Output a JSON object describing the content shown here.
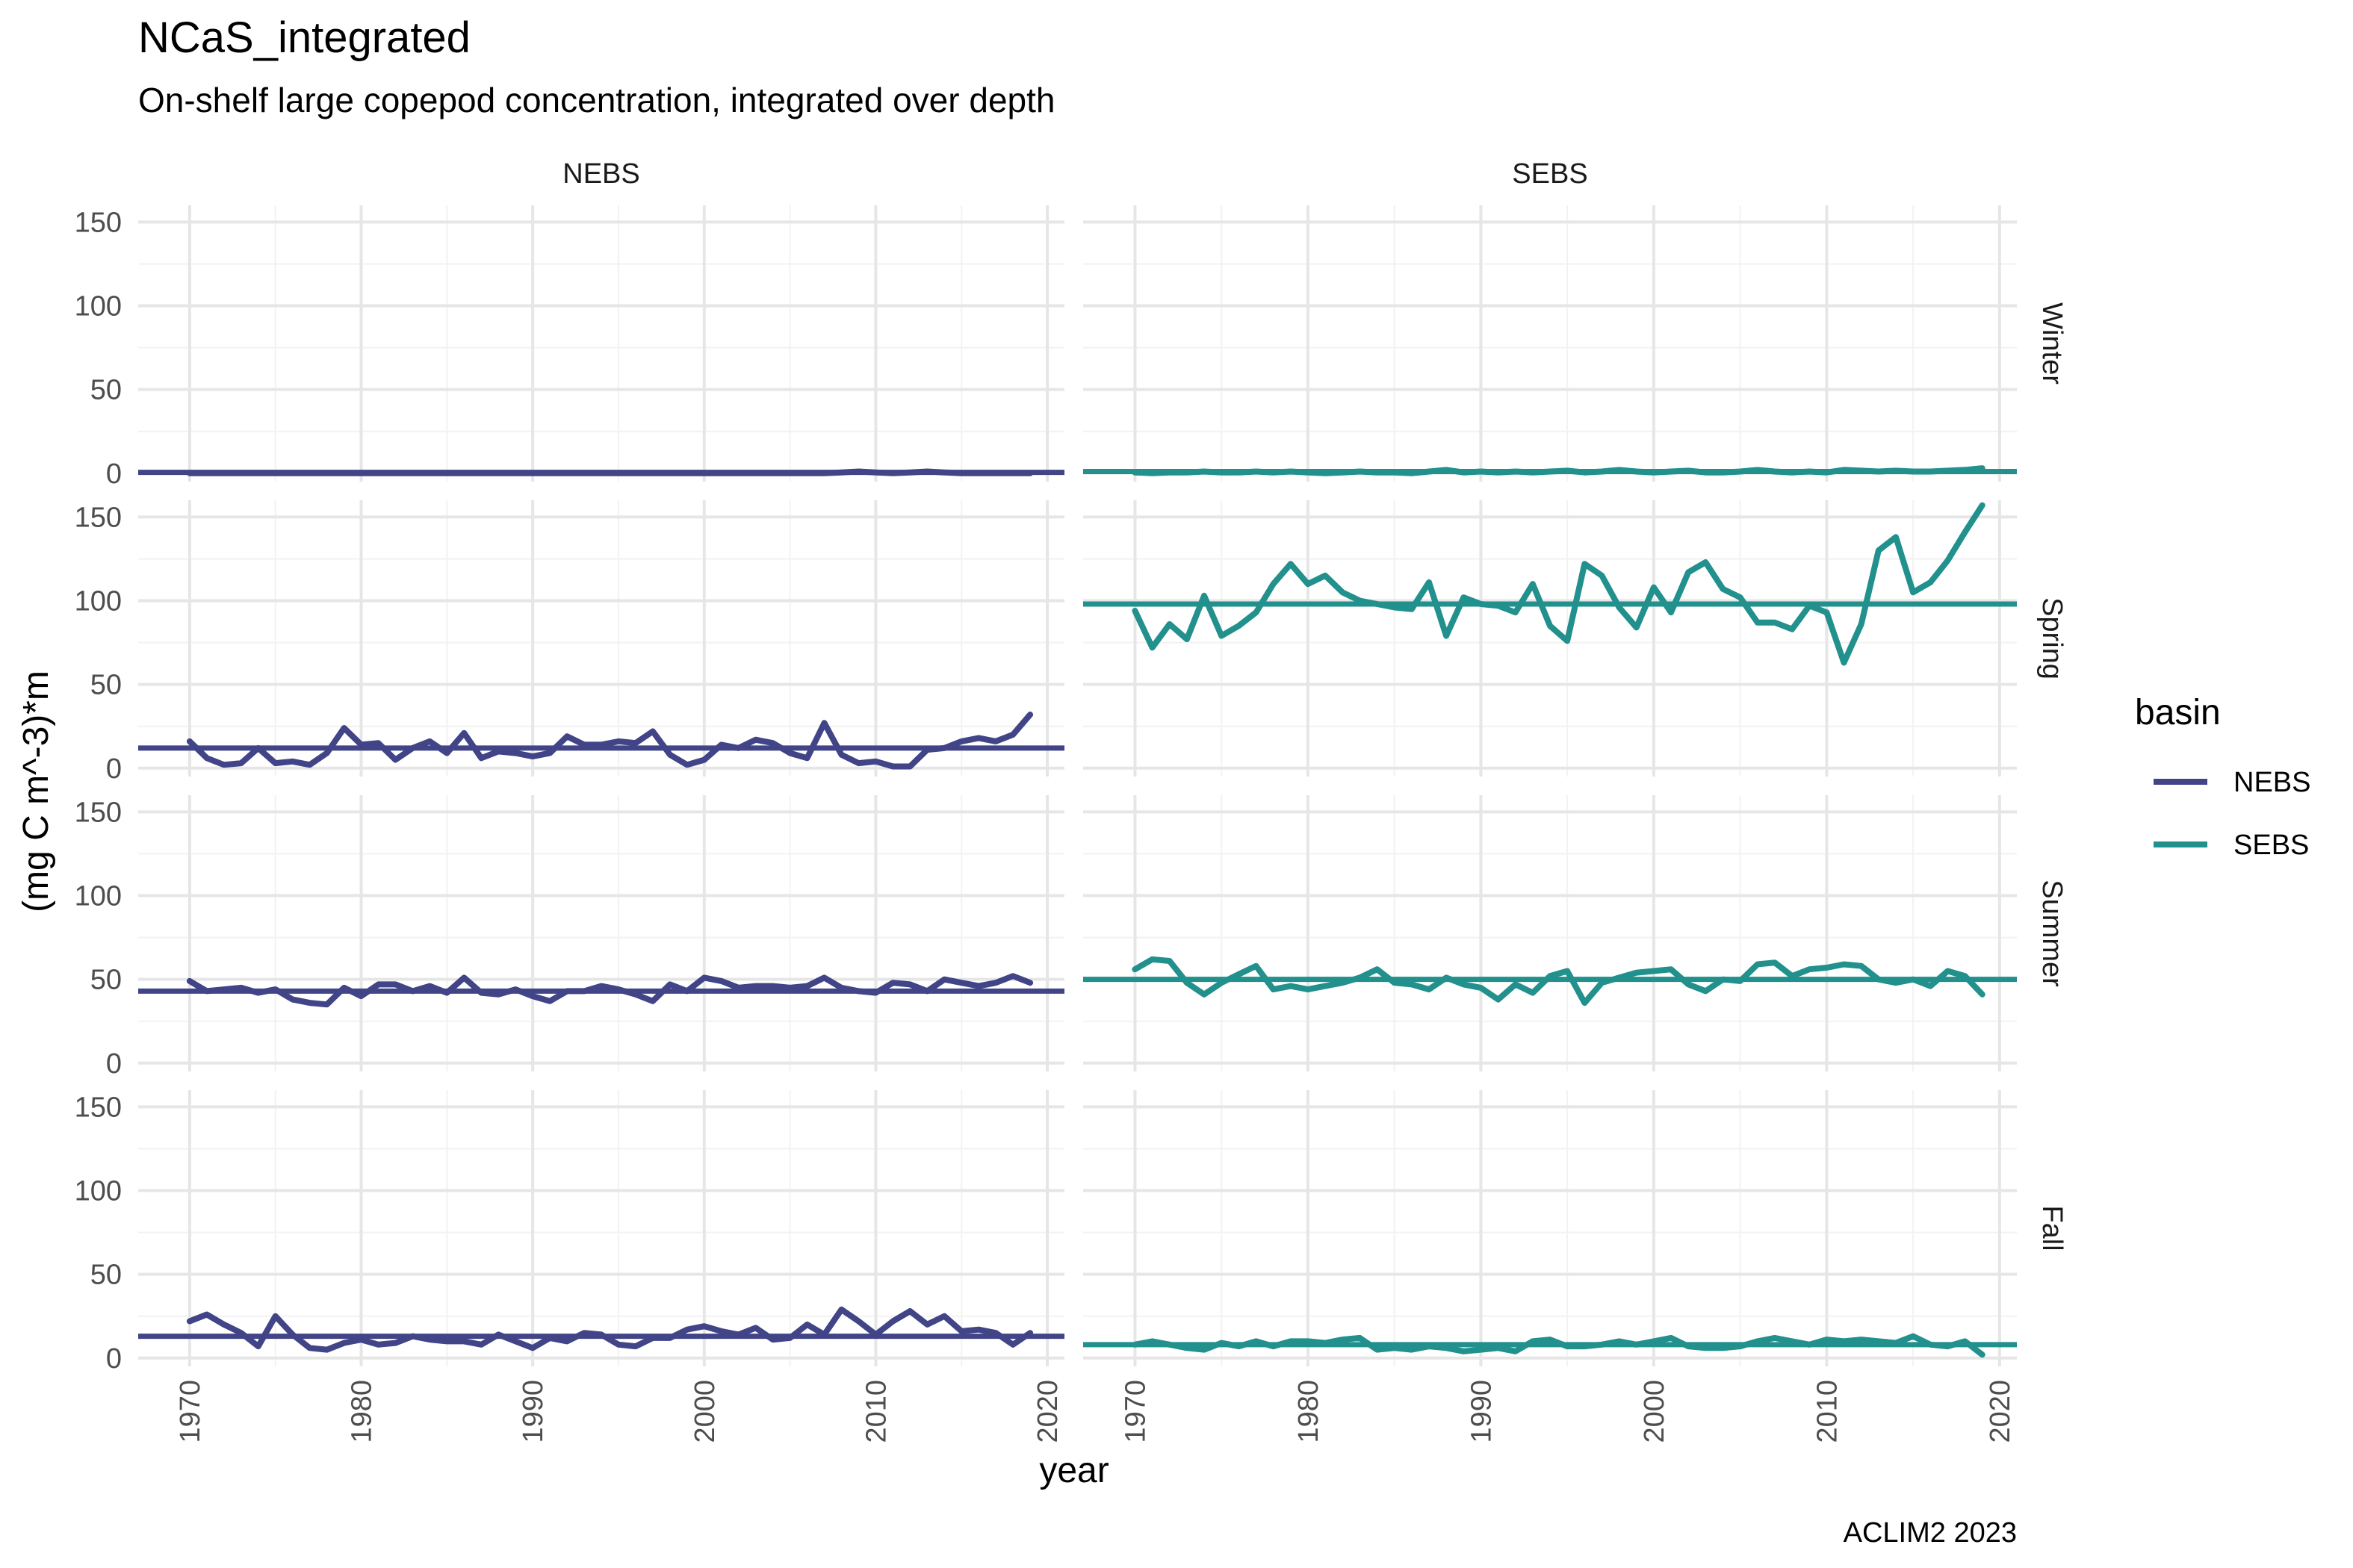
{
  "chart_data": {
    "type": "line",
    "title": "NCaS_integrated",
    "subtitle": "On-shelf large copepod concentration, integrated over depth",
    "xlabel": "year",
    "ylabel": "(mg C m^-3)*m",
    "caption": "ACLIM2 2023",
    "xlim": [
      1967,
      2021
    ],
    "ylim": [
      -5,
      160
    ],
    "x_ticks": [
      1970,
      1980,
      1990,
      2000,
      2010,
      2020
    ],
    "y_ticks": [
      0,
      50,
      100,
      150
    ],
    "grid": true,
    "legend": {
      "title": "basin",
      "position": "right"
    },
    "colors": {
      "NEBS": "#414487",
      "SEBS": "#22908C"
    },
    "columns": [
      "NEBS",
      "SEBS"
    ],
    "rows": [
      "Winter",
      "Spring",
      "Summer",
      "Fall"
    ],
    "x_start": 1970,
    "x_end": 2019,
    "panels": [
      {
        "season": "Winter",
        "basin": "NEBS",
        "mean": 0.5,
        "values": [
          0,
          0,
          0,
          0,
          0,
          0,
          0,
          0,
          0,
          0,
          0,
          0,
          0,
          0,
          0,
          0,
          0,
          0,
          0,
          0,
          0,
          0,
          0,
          0,
          0,
          0,
          0,
          0,
          0,
          0,
          0,
          0,
          0,
          0,
          0,
          0,
          0,
          0,
          0.5,
          1,
          0.5,
          0,
          0.5,
          1,
          0.5,
          0,
          0,
          0,
          0,
          0
        ]
      },
      {
        "season": "Winter",
        "basin": "SEBS",
        "mean": 1,
        "values": [
          0.5,
          0,
          0.5,
          0.5,
          1,
          0.5,
          0.5,
          1,
          0.5,
          1,
          0.5,
          0,
          0.5,
          1,
          0.5,
          0.5,
          0,
          1,
          2,
          0.5,
          1,
          0.5,
          1,
          0.5,
          1,
          1.5,
          0.5,
          1,
          2,
          1,
          0.5,
          1,
          1.5,
          0.5,
          0.5,
          1,
          2,
          1,
          0.5,
          1,
          0.5,
          2,
          1.5,
          1,
          1.5,
          1,
          1,
          1.5,
          2,
          3
        ]
      },
      {
        "season": "Spring",
        "basin": "NEBS",
        "mean": 12,
        "values": [
          16,
          6,
          2,
          3,
          12,
          3,
          4,
          2,
          9,
          24,
          14,
          15,
          5,
          12,
          16,
          9,
          21,
          6,
          10,
          9,
          7,
          9,
          19,
          14,
          14,
          16,
          15,
          22,
          8,
          2,
          5,
          14,
          12,
          17,
          15,
          9,
          6,
          27,
          8,
          3,
          4,
          1,
          1,
          11,
          12,
          16,
          18,
          16,
          20,
          32
        ]
      },
      {
        "season": "Spring",
        "basin": "SEBS",
        "mean": 98,
        "values": [
          94,
          72,
          86,
          77,
          103,
          79,
          85,
          93,
          110,
          122,
          110,
          115,
          105,
          100,
          98,
          96,
          95,
          111,
          79,
          102,
          98,
          97,
          93,
          110,
          85,
          76,
          122,
          115,
          96,
          84,
          108,
          93,
          117,
          123,
          107,
          102,
          87,
          87,
          83,
          97,
          93,
          63,
          86,
          130,
          138,
          105,
          111,
          124,
          141,
          157
        ]
      },
      {
        "season": "Summer",
        "basin": "NEBS",
        "mean": 43,
        "values": [
          49,
          43,
          44,
          45,
          42,
          44,
          38,
          36,
          35,
          45,
          40,
          47,
          47,
          43,
          46,
          42,
          51,
          42,
          41,
          44,
          40,
          37,
          43,
          43,
          46,
          44,
          41,
          37,
          47,
          43,
          51,
          49,
          45,
          46,
          46,
          45,
          46,
          51,
          45,
          43,
          42,
          48,
          47,
          43,
          50,
          48,
          46,
          48,
          52,
          48
        ]
      },
      {
        "season": "Summer",
        "basin": "SEBS",
        "mean": 50,
        "values": [
          56,
          62,
          61,
          48,
          41,
          48,
          53,
          58,
          44,
          46,
          44,
          46,
          48,
          51,
          56,
          48,
          47,
          44,
          51,
          47,
          45,
          38,
          47,
          42,
          52,
          55,
          36,
          48,
          51,
          54,
          55,
          56,
          47,
          43,
          50,
          49,
          59,
          60,
          52,
          56,
          57,
          59,
          58,
          50,
          48,
          50,
          46,
          55,
          52,
          41
        ]
      },
      {
        "season": "Fall",
        "basin": "NEBS",
        "mean": 13,
        "values": [
          22,
          26,
          20,
          15,
          7,
          25,
          14,
          6,
          5,
          9,
          11,
          8,
          9,
          13,
          11,
          10,
          10,
          8,
          14,
          10,
          6,
          12,
          10,
          15,
          14,
          8,
          7,
          12,
          12,
          17,
          19,
          16,
          14,
          18,
          11,
          12,
          20,
          14,
          29,
          22,
          14,
          22,
          28,
          20,
          25,
          16,
          17,
          15,
          8,
          15
        ]
      },
      {
        "season": "Fall",
        "basin": "SEBS",
        "mean": 8,
        "values": [
          8,
          10,
          8,
          6,
          5,
          9,
          7,
          10,
          7,
          10,
          10,
          9,
          11,
          12,
          5,
          6,
          5,
          7,
          6,
          4,
          5,
          6,
          4,
          10,
          11,
          7,
          7,
          8,
          10,
          8,
          10,
          12,
          7,
          6,
          6,
          7,
          10,
          12,
          10,
          8,
          11,
          10,
          11,
          10,
          9,
          13,
          8,
          7,
          10,
          2
        ]
      }
    ]
  }
}
